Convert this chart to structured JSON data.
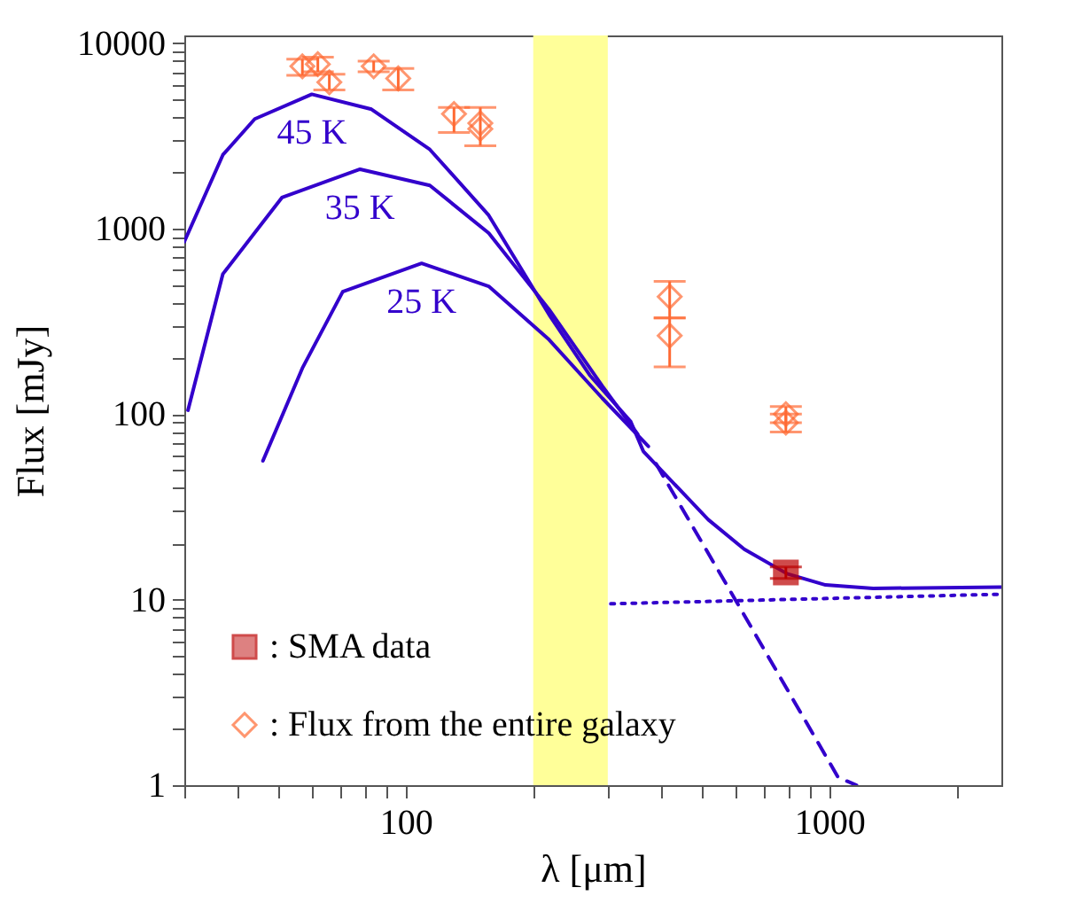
{
  "chart_data": {
    "type": "line",
    "xlabel": "λ [μm]",
    "ylabel": "Flux [mJy]",
    "log": "xy",
    "grid": false,
    "legend": "bottom left",
    "xlim": [
      30,
      2550
    ],
    "ylim": [
      1,
      11000
    ],
    "xticks": [
      {
        "value": 30,
        "label": null
      },
      {
        "value": 40,
        "label": null
      },
      {
        "value": 50,
        "label": null
      },
      {
        "value": 60,
        "label": null
      },
      {
        "value": 70,
        "label": null
      },
      {
        "value": 80,
        "label": null
      },
      {
        "value": 90,
        "label": null
      },
      100,
      {
        "value": 200,
        "label": null
      },
      {
        "value": 300,
        "label": null
      },
      {
        "value": 400,
        "label": null
      },
      {
        "value": 500,
        "label": null
      },
      {
        "value": 600,
        "label": null
      },
      {
        "value": 700,
        "label": null
      },
      {
        "value": 800,
        "label": null
      },
      {
        "value": 900,
        "label": null
      },
      1000,
      {
        "value": 2000,
        "label": null
      }
    ],
    "yticks": [
      1,
      {
        "value": 2,
        "label": null
      },
      {
        "value": 3,
        "label": null
      },
      {
        "value": 4,
        "label": null
      },
      {
        "value": 5,
        "label": null
      },
      {
        "value": 6,
        "label": null
      },
      {
        "value": 7,
        "label": null
      },
      {
        "value": 8,
        "label": null
      },
      {
        "value": 9,
        "label": null
      },
      10,
      {
        "value": 20,
        "label": null
      },
      {
        "value": 30,
        "label": null
      },
      {
        "value": 40,
        "label": null
      },
      {
        "value": 50,
        "label": null
      },
      {
        "value": 60,
        "label": null
      },
      {
        "value": 70,
        "label": null
      },
      {
        "value": 80,
        "label": null
      },
      {
        "value": 90,
        "label": null
      },
      100,
      {
        "value": 200,
        "label": null
      },
      {
        "value": 300,
        "label": null
      },
      {
        "value": 400,
        "label": null
      },
      {
        "value": 500,
        "label": null
      },
      {
        "value": 600,
        "label": null
      },
      {
        "value": 700,
        "label": null
      },
      {
        "value": 800,
        "label": null
      },
      {
        "value": 900,
        "label": null
      },
      1000,
      {
        "value": 2000,
        "label": null
      },
      {
        "value": 3000,
        "label": null
      },
      {
        "value": 4000,
        "label": null
      },
      {
        "value": 5000,
        "label": null
      },
      {
        "value": 6000,
        "label": null
      },
      {
        "value": 7000,
        "label": null
      },
      {
        "value": 8000,
        "label": null
      },
      {
        "value": 9000,
        "label": null
      },
      10000
    ],
    "bands": [
      {
        "axis": "x",
        "from": 200,
        "to": 300,
        "color": "#ffff99"
      }
    ],
    "series": [
      {
        "name": "45 K",
        "color": "#3300cc",
        "line_style": "solid",
        "x": [
          30,
          37,
          44,
          60,
          83,
          114,
          157,
          218,
          272,
          340,
          364,
          518,
          630,
          795,
          980,
          1270,
          2550
        ],
        "values": [
          850,
          2500,
          3900,
          5300,
          4400,
          2670,
          1180,
          344,
          162,
          91,
          63,
          27,
          18.7,
          13.8,
          12,
          11.5,
          11.7
        ]
      },
      {
        "name": "35 K",
        "color": "#3300cc",
        "line_style": "solid",
        "x": [
          30.6,
          37,
          51,
          78,
          114,
          157,
          218,
          291,
          353
        ],
        "values": [
          105,
          570,
          1470,
          2090,
          1710,
          946,
          367,
          142,
          78
        ]
      },
      {
        "name": "25 K",
        "color": "#3300cc",
        "line_style": "solid",
        "x": [
          46,
          57,
          71,
          109,
          157,
          218,
          291,
          374
        ],
        "values": [
          56,
          177,
          457,
          650,
          489,
          252,
          122,
          67
        ]
      },
      {
        "color": "#3300cc",
        "line_style": "dashed",
        "x": [
          390,
          600,
          1050,
          1160
        ],
        "values": [
          54,
          10,
          1.1,
          1
        ]
      },
      {
        "color": "#3300cc",
        "line_style": "dotted",
        "x": [
          305,
          2550
        ],
        "values": [
          9.5,
          10.7
        ]
      },
      {
        "name": ": SMA data",
        "type": "scatter",
        "marker": "square",
        "color": "#bb0000",
        "x": [
          790
        ],
        "values": [
          14
        ],
        "errors": [
          [
            13,
            15
          ]
        ]
      },
      {
        "name": ": Flux from the entire galaxy",
        "type": "scatter",
        "marker": "diamond",
        "color": "#ff6a33",
        "x": [
          57,
          62,
          66,
          84,
          96,
          130,
          150,
          150,
          420,
          420,
          790,
          790
        ],
        "values": [
          7500,
          7700,
          6150,
          7500,
          6450,
          4150,
          3700,
          3450,
          430,
          265,
          100,
          90
        ],
        "errors": [
          [
            6700,
            8200
          ],
          [
            7000,
            8400
          ],
          [
            5600,
            6800
          ],
          [
            7000,
            8000
          ],
          [
            5600,
            7300
          ],
          [
            3300,
            4500
          ],
          [
            2800,
            4500
          ],
          null,
          [
            330,
            520
          ],
          [
            180,
            330
          ],
          [
            90,
            110
          ],
          [
            80,
            100
          ]
        ]
      }
    ]
  }
}
